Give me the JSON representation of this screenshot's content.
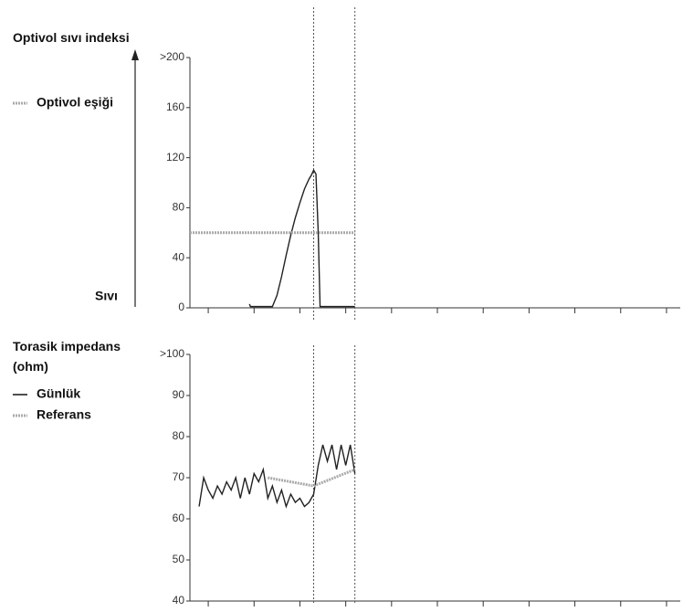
{
  "chart_data": [
    {
      "type": "line",
      "title": "Optivol sıvı indeksi",
      "annotation": "Sıvı",
      "xlim": [
        0,
        107
      ],
      "xticks": [
        4,
        14,
        24,
        34,
        44,
        54,
        64,
        74,
        84,
        94,
        104
      ],
      "ylim": [
        0,
        200
      ],
      "yticks": [
        0,
        40,
        80,
        120,
        160,
        {
          "value": 200,
          "label": ">200"
        }
      ],
      "vlines": [
        27,
        36
      ],
      "series": [
        {
          "color": "#222222",
          "style": "solid",
          "x": [
            13,
            13.2,
            18,
            19,
            20,
            21,
            22,
            23,
            24,
            25,
            26,
            26.5,
            27,
            27.5,
            28,
            28.4,
            36
          ],
          "values": [
            3,
            1,
            1,
            10,
            25,
            42,
            58,
            72,
            84,
            95,
            103,
            106,
            110,
            107,
            60,
            1,
            1
          ]
        },
        {
          "name": "Optivol eşiği",
          "color": "#aaaaaa",
          "style": "dotted",
          "x": [
            0,
            36
          ],
          "values": [
            60,
            60
          ]
        }
      ]
    },
    {
      "type": "line",
      "title": "Torasik impedans (ohm)",
      "xlim": [
        0,
        107
      ],
      "xticks": [
        4,
        14,
        24,
        34,
        44,
        54,
        64,
        74,
        84,
        94,
        104
      ],
      "ylim": [
        40,
        100
      ],
      "yticks": [
        40,
        50,
        60,
        70,
        80,
        90,
        {
          "value": 100,
          "label": ">100"
        }
      ],
      "vlines": [
        27,
        36
      ],
      "series": [
        {
          "name": "Günlük",
          "color": "#222222",
          "style": "solid",
          "x": [
            2,
            3,
            4,
            5,
            6,
            7,
            8,
            9,
            10,
            11,
            12,
            13,
            14,
            15,
            16,
            17,
            18,
            19,
            20,
            21,
            22,
            23,
            24,
            25,
            26,
            27,
            28,
            29,
            30,
            31,
            32,
            33,
            34,
            35,
            36
          ],
          "values": [
            63,
            70,
            67,
            65,
            68,
            66,
            69,
            67,
            70,
            65,
            70,
            66,
            71,
            69,
            72,
            65,
            68,
            64,
            67,
            63,
            66,
            64,
            65,
            63,
            64,
            66,
            73,
            78,
            74,
            78,
            72,
            78,
            73,
            78,
            71
          ]
        },
        {
          "name": "Referans",
          "color": "#aaaaaa",
          "style": "dotted",
          "x": [
            17,
            22,
            27,
            36
          ],
          "values": [
            70,
            69,
            68,
            72
          ]
        }
      ]
    }
  ]
}
